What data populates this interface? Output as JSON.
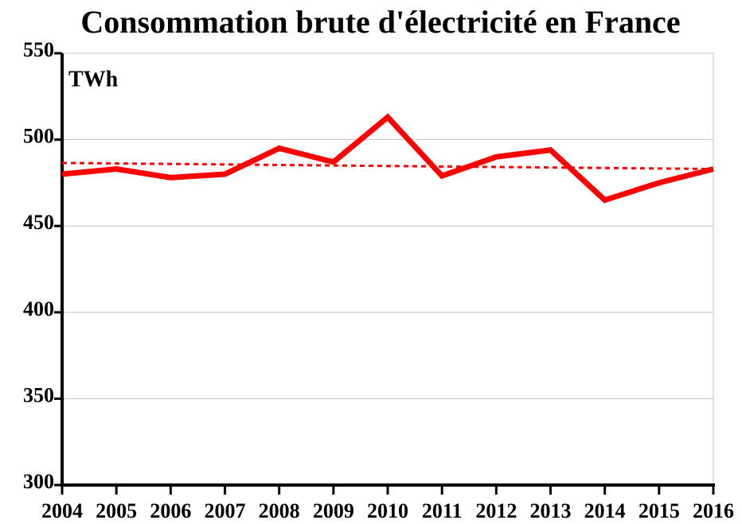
{
  "chart_data": {
    "type": "line",
    "title": "Consommation brute d'électricité en France",
    "unit_label": "TWh",
    "x": [
      2004,
      2005,
      2006,
      2007,
      2008,
      2009,
      2010,
      2011,
      2012,
      2013,
      2014,
      2015,
      2016
    ],
    "series": [
      {
        "color": "#ff0000",
        "values": [
          480,
          483,
          478,
          480,
          495,
          487,
          513,
          479,
          490,
          494,
          465,
          475,
          483
        ]
      }
    ],
    "trend": {
      "x": [
        2004,
        2016
      ],
      "values": [
        486.5,
        483
      ],
      "color": "#ff0000",
      "dash": "dotted"
    },
    "xlim": [
      2004,
      2016
    ],
    "xticks": [
      2004,
      2005,
      2006,
      2007,
      2008,
      2009,
      2010,
      2011,
      2012,
      2013,
      2014,
      2015,
      2016
    ],
    "ylim": [
      300,
      550
    ],
    "yticks": [
      300,
      350,
      400,
      450,
      500,
      550
    ],
    "grid": true
  }
}
